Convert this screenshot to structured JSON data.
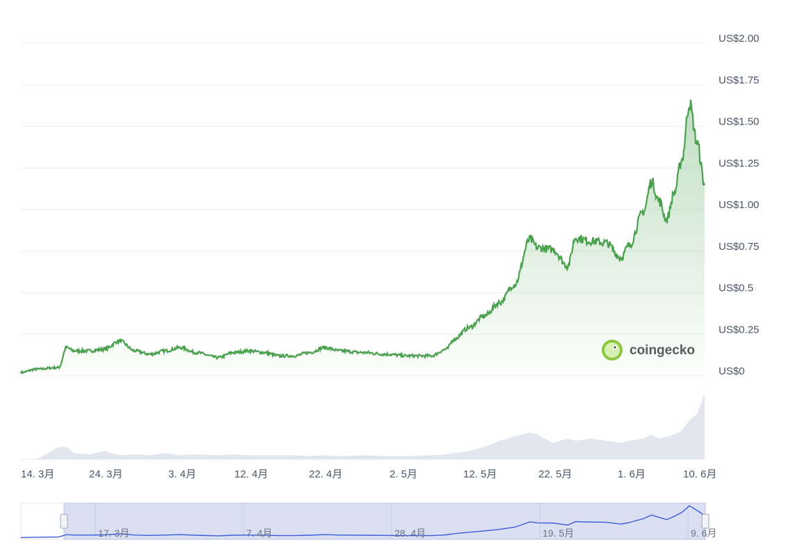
{
  "brand": {
    "logo_text": "coingecko"
  },
  "chart_data": {
    "type": "area",
    "y_axis": {
      "labels": [
        "US$0",
        "US$0.25",
        "US$0.5",
        "US$0.75",
        "US$1.00",
        "US$1.25",
        "US$1.50",
        "US$1.75",
        "US$2.00"
      ],
      "range": [
        0,
        2.0
      ]
    },
    "x_axis": {
      "labels": [
        "14. 3月",
        "24. 3月",
        "3. 4月",
        "12. 4月",
        "22. 4月",
        "2. 5月",
        "12. 5月",
        "22. 5月",
        "1. 6月",
        "10. 6月"
      ]
    },
    "series": [
      {
        "x": [
          "2024-03-13",
          "2024-03-15",
          "2024-03-18",
          "2024-03-19",
          "2024-03-20",
          "2024-03-22",
          "2024-03-24",
          "2024-03-26",
          "2024-03-28",
          "2024-03-30",
          "2024-04-01",
          "2024-04-03",
          "2024-04-05",
          "2024-04-08",
          "2024-04-10",
          "2024-04-12",
          "2024-04-14",
          "2024-04-16",
          "2024-04-18",
          "2024-04-20",
          "2024-04-22",
          "2024-04-24",
          "2024-04-27",
          "2024-04-30",
          "2024-05-03",
          "2024-05-06",
          "2024-05-08",
          "2024-05-09",
          "2024-05-11",
          "2024-05-13",
          "2024-05-15",
          "2024-05-17",
          "2024-05-19",
          "2024-05-20",
          "2024-05-22",
          "2024-05-24",
          "2024-05-25",
          "2024-05-27",
          "2024-05-29",
          "2024-05-31",
          "2024-06-01",
          "2024-06-03",
          "2024-06-04",
          "2024-06-05",
          "2024-06-06",
          "2024-06-07",
          "2024-06-08",
          "2024-06-09",
          "2024-06-10",
          "2024-06-11"
        ],
        "y": [
          0.02,
          0.04,
          0.05,
          0.17,
          0.15,
          0.15,
          0.16,
          0.21,
          0.15,
          0.13,
          0.15,
          0.17,
          0.14,
          0.11,
          0.14,
          0.15,
          0.14,
          0.12,
          0.12,
          0.14,
          0.17,
          0.15,
          0.14,
          0.13,
          0.12,
          0.12,
          0.16,
          0.22,
          0.29,
          0.36,
          0.44,
          0.55,
          0.82,
          0.77,
          0.76,
          0.66,
          0.83,
          0.81,
          0.8,
          0.71,
          0.78,
          0.99,
          1.17,
          1.05,
          0.94,
          1.1,
          1.3,
          1.64,
          1.4,
          1.15
        ]
      }
    ],
    "volume": [
      0,
      0,
      0.3,
      0.3,
      0.15,
      0.12,
      0.2,
      0.1,
      0.12,
      0.1,
      0.15,
      0.1,
      0.12,
      0.1,
      0.12,
      0.1,
      0.1,
      0.1,
      0.1,
      0.08,
      0.1,
      0.08,
      0.1,
      0.08,
      0.08,
      0.1,
      0.12,
      0.15,
      0.2,
      0.3,
      0.45,
      0.55,
      0.65,
      0.6,
      0.4,
      0.5,
      0.45,
      0.5,
      0.45,
      0.4,
      0.45,
      0.5,
      0.6,
      0.5,
      0.55,
      0.6,
      0.7,
      0.95,
      1.1,
      1.6
    ],
    "navigator": {
      "labels": [
        "17. 3月",
        "7. 4月",
        "28. 4月",
        "19. 5月",
        "9. 6月"
      ]
    },
    "colors": {
      "line": "#4aa14d",
      "volume": "#e3e5ef",
      "navigator_bg": "#d3d9ef",
      "navigator_line": "#3b5bdb"
    }
  }
}
